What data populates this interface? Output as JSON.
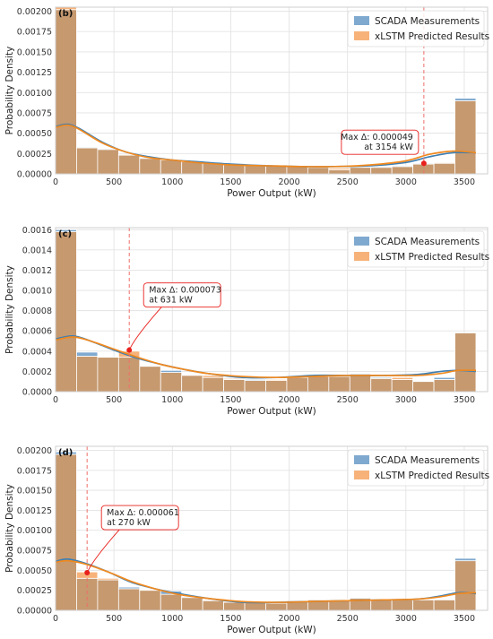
{
  "colors": {
    "scada": "#7fa9cf",
    "xlstm": "#f7b27a",
    "overlap": "#c6996f",
    "scada_kde": "#3e7fb3",
    "xlstm_kde": "#f0891f",
    "marker": "#e8201c"
  },
  "legend": {
    "scada": "SCADA Measurements",
    "xlstm": "xLSTM Predicted Results"
  },
  "chart_data": [
    {
      "type": "bar",
      "panel": "(b)",
      "xlabel": "Power Output (kW)",
      "ylabel": "Probability Density",
      "xlim": [
        0,
        3700
      ],
      "ylim": [
        0,
        0.00205
      ],
      "xticks": [
        "0",
        "500",
        "1000",
        "1500",
        "2000",
        "2500",
        "3000",
        "3500"
      ],
      "yticks": [
        "0.00000",
        "0.00025",
        "0.00050",
        "0.00075",
        "0.00100",
        "0.00125",
        "0.00150",
        "0.00175",
        "0.00200"
      ],
      "ytick_values": [
        0,
        0.00025,
        0.0005,
        0.00075,
        0.001,
        0.00125,
        0.0015,
        0.00175,
        0.002
      ],
      "bin_edges": [
        0,
        180,
        360,
        540,
        720,
        900,
        1080,
        1260,
        1440,
        1620,
        1800,
        1980,
        2160,
        2340,
        2520,
        2700,
        2880,
        3060,
        3240,
        3420,
        3600
      ],
      "series": [
        {
          "name": "SCADA Measurements",
          "values": [
            0.00202,
            0.00033,
            0.00031,
            0.00023,
            0.0002,
            0.00018,
            0.00015,
            0.00014,
            0.00013,
            0.00012,
            0.00011,
            0.0001,
            9e-05,
            5e-05,
            8e-05,
            9e-05,
            0.0001,
            0.00013,
            0.00013,
            0.00093
          ]
        },
        {
          "name": "xLSTM Predicted Results",
          "values": [
            0.00205,
            0.00032,
            0.0003,
            0.00024,
            0.00019,
            0.00017,
            0.00016,
            0.00013,
            0.00012,
            0.00011,
            0.00011,
            0.0001,
            8e-05,
            7e-05,
            8e-05,
            8e-05,
            9e-05,
            0.00012,
            0.00014,
            0.0009
          ]
        }
      ],
      "kde": [
        {
          "name": "SCADA Measurements",
          "x": [
            0,
            100,
            200,
            400,
            600,
            800,
            1000,
            1200,
            1500,
            1800,
            2100,
            2400,
            2700,
            3000,
            3200,
            3400,
            3600
          ],
          "y": [
            0.00058,
            0.00061,
            0.00056,
            0.00039,
            0.00027,
            0.00021,
            0.00017,
            0.00015,
            0.00012,
            0.0001,
            9e-05,
            9e-05,
            0.0001,
            0.00014,
            0.00021,
            0.00026,
            0.00026
          ]
        },
        {
          "name": "xLSTM Predicted Results",
          "x": [
            0,
            100,
            200,
            400,
            600,
            800,
            1000,
            1200,
            1500,
            1800,
            2100,
            2400,
            2700,
            3000,
            3200,
            3400,
            3600
          ],
          "y": [
            0.00057,
            0.0006,
            0.00055,
            0.00038,
            0.00027,
            0.0002,
            0.00017,
            0.00014,
            0.00011,
            0.0001,
            9e-05,
            9e-05,
            0.00011,
            0.00016,
            0.00024,
            0.00028,
            0.00026
          ]
        }
      ],
      "annotation": {
        "line1": "Max Δ: 0.000049",
        "line2": "at 3154 kW",
        "x": 3154,
        "y": 0.00013,
        "align": "right"
      }
    },
    {
      "type": "bar",
      "panel": "(c)",
      "xlabel": "Power Output (kW)",
      "ylabel": "Probability Density",
      "xlim": [
        0,
        3700
      ],
      "ylim": [
        0,
        0.00162
      ],
      "xticks": [
        "0",
        "500",
        "1000",
        "1500",
        "2000",
        "2500",
        "3000",
        "3500"
      ],
      "yticks": [
        "0.0000",
        "0.0002",
        "0.0004",
        "0.0006",
        "0.0008",
        "0.0010",
        "0.0012",
        "0.0014",
        "0.0016"
      ],
      "ytick_values": [
        0,
        0.0002,
        0.0004,
        0.0006,
        0.0008,
        0.001,
        0.0012,
        0.0014,
        0.0016
      ],
      "bin_edges": [
        0,
        180,
        360,
        540,
        720,
        900,
        1080,
        1260,
        1440,
        1620,
        1800,
        1980,
        2160,
        2340,
        2520,
        2700,
        2880,
        3060,
        3240,
        3420,
        3600
      ],
      "series": [
        {
          "name": "SCADA Measurements",
          "values": [
            0.0016,
            0.00039,
            0.00034,
            0.00034,
            0.00025,
            0.00021,
            0.00016,
            0.00014,
            0.00012,
            0.00012,
            0.00011,
            0.00014,
            0.00015,
            0.00015,
            0.00018,
            0.00014,
            0.00012,
            0.0001,
            0.00014,
            0.00058
          ]
        },
        {
          "name": "xLSTM Predicted Results",
          "values": [
            0.00158,
            0.00035,
            0.00034,
            0.0004,
            0.00025,
            0.00019,
            0.00016,
            0.00016,
            0.00013,
            0.00011,
            0.00012,
            0.00014,
            0.00015,
            0.00015,
            0.00017,
            0.00013,
            0.00014,
            0.0001,
            0.00012,
            0.00058
          ]
        }
      ],
      "kde": [
        {
          "name": "SCADA Measurements",
          "x": [
            0,
            150,
            300,
            500,
            700,
            900,
            1100,
            1300,
            1600,
            1900,
            2200,
            2500,
            2800,
            3100,
            3300,
            3450,
            3600
          ],
          "y": [
            0.00052,
            0.00055,
            0.0005,
            0.00041,
            0.00033,
            0.00027,
            0.00022,
            0.00018,
            0.00014,
            0.00014,
            0.00016,
            0.00016,
            0.00016,
            0.00017,
            0.0002,
            0.00021,
            0.0002
          ]
        },
        {
          "name": "xLSTM Predicted Results",
          "x": [
            0,
            150,
            300,
            500,
            700,
            900,
            1100,
            1300,
            1600,
            1900,
            2200,
            2500,
            2800,
            3100,
            3300,
            3450,
            3600
          ],
          "y": [
            0.00051,
            0.00054,
            0.0005,
            0.00042,
            0.00034,
            0.00027,
            0.00022,
            0.00018,
            0.00015,
            0.00014,
            0.00015,
            0.00016,
            0.00016,
            0.00016,
            0.00018,
            0.00021,
            0.00021
          ]
        }
      ],
      "annotation": {
        "line1": "Max Δ: 0.000073",
        "line2": "at 631 kW",
        "x": 631,
        "y": 0.00041,
        "align": "left"
      }
    },
    {
      "type": "bar",
      "panel": "(d)",
      "xlabel": "Power Output (kW)",
      "ylabel": "Probability Density",
      "xlim": [
        0,
        3700
      ],
      "ylim": [
        0,
        0.00205
      ],
      "xticks": [
        "0",
        "500",
        "1000",
        "1500",
        "2000",
        "2500",
        "3000",
        "3500"
      ],
      "yticks": [
        "0.00000",
        "0.00025",
        "0.00050",
        "0.00075",
        "0.00100",
        "0.00125",
        "0.00150",
        "0.00175",
        "0.00200"
      ],
      "ytick_values": [
        0,
        0.00025,
        0.0005,
        0.00075,
        0.001,
        0.00125,
        0.0015,
        0.00175,
        0.002
      ],
      "bin_edges": [
        0,
        180,
        360,
        540,
        720,
        900,
        1080,
        1260,
        1440,
        1620,
        1800,
        1980,
        2160,
        2340,
        2520,
        2700,
        2880,
        3060,
        3240,
        3420,
        3600
      ],
      "series": [
        {
          "name": "SCADA Measurements",
          "values": [
            0.00198,
            0.0004,
            0.00038,
            0.00029,
            0.00025,
            0.00024,
            0.00017,
            0.00012,
            0.0001,
            0.0001,
            9e-05,
            0.00012,
            0.00013,
            0.00013,
            0.00016,
            0.00014,
            0.00013,
            0.00013,
            0.00013,
            0.00065
          ]
        },
        {
          "name": "xLSTM Predicted Results",
          "values": [
            0.00195,
            0.00048,
            0.0004,
            0.00027,
            0.00026,
            0.0002,
            0.00016,
            0.00012,
            0.00011,
            0.0001,
            0.0001,
            0.00012,
            0.00013,
            0.00014,
            0.00015,
            0.00014,
            0.00014,
            0.00013,
            0.00013,
            0.00062
          ]
        }
      ],
      "kde": [
        {
          "name": "SCADA Measurements",
          "x": [
            0,
            100,
            250,
            450,
            650,
            850,
            1050,
            1300,
            1600,
            1900,
            2200,
            2500,
            2800,
            3100,
            3300,
            3450,
            3600
          ],
          "y": [
            0.00061,
            0.00064,
            0.00059,
            0.00048,
            0.00035,
            0.00027,
            0.00021,
            0.00015,
            0.0001,
            0.0001,
            0.00011,
            0.00012,
            0.00013,
            0.00014,
            0.00018,
            0.00022,
            0.00021
          ]
        },
        {
          "name": "xLSTM Predicted Results",
          "x": [
            0,
            100,
            250,
            450,
            650,
            850,
            1050,
            1300,
            1600,
            1900,
            2200,
            2500,
            2800,
            3100,
            3300,
            3450,
            3600
          ],
          "y": [
            0.0006,
            0.00062,
            0.00058,
            0.00048,
            0.00036,
            0.00027,
            0.0002,
            0.00015,
            0.00011,
            0.0001,
            0.00011,
            0.00012,
            0.00013,
            0.00014,
            0.00017,
            0.00021,
            0.00022
          ]
        }
      ],
      "annotation": {
        "line1": "Max Δ: 0.000061",
        "line2": "at 270 kW",
        "x": 270,
        "y": 0.00047,
        "align": "left"
      }
    }
  ]
}
